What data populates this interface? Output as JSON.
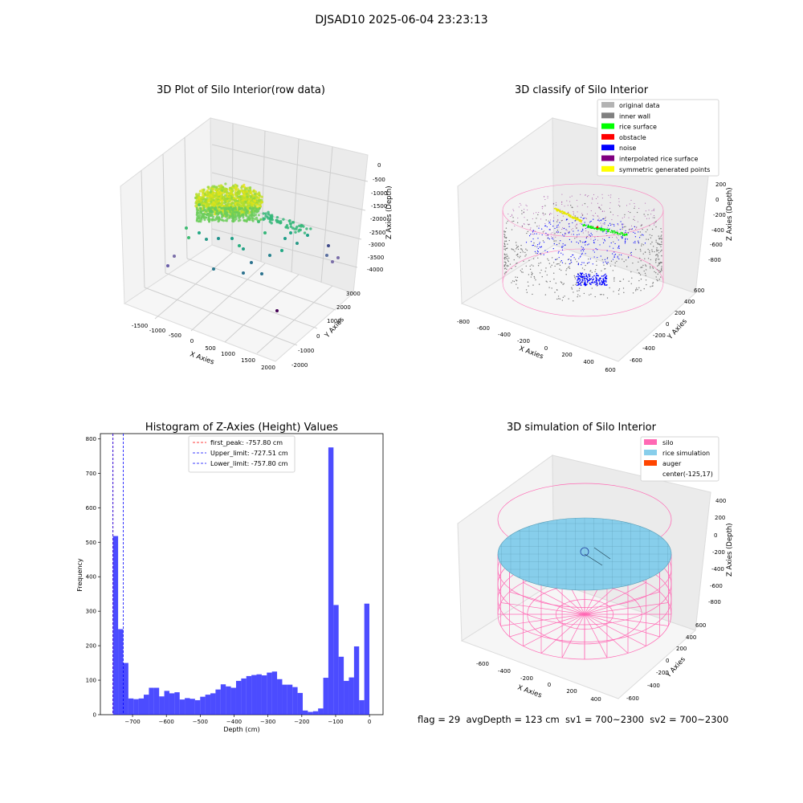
{
  "suptitle": "DJSAD10 2025-06-04 23:23:13",
  "status_text": "flag = 29  avgDepth = 123 cm  sv1 = 700~2300  sv2 = 700~2300",
  "panels": {
    "raw": {
      "title": "3D Plot of Silo Interior(row data)",
      "xlabel": "X Axies",
      "ylabel": "Y Axies",
      "zlabel": "Z Axies (Depth)",
      "xticks": [
        "-1500",
        "-1000",
        "-500",
        "0",
        "500",
        "1000",
        "1500",
        "2000"
      ],
      "yticks": [
        "-2000",
        "-1000",
        "0",
        "1000",
        "2000",
        "3000"
      ],
      "zticks": [
        "0",
        "-500",
        "-1000",
        "-1500",
        "-2000",
        "-2500",
        "-3000",
        "-3500",
        "-4000"
      ]
    },
    "classify": {
      "title": "3D classify of Silo Interior",
      "xlabel": "X Axies",
      "ylabel": "Y Axies",
      "zlabel": "Z Axies (Depth)",
      "xticks": [
        "-800",
        "-600",
        "-400",
        "-200",
        "0",
        "200",
        "400",
        "600"
      ],
      "yticks": [
        "-600",
        "-400",
        "-200",
        "0",
        "200",
        "400",
        "600"
      ],
      "zticks": [
        "200",
        "0",
        "-200",
        "-400",
        "-600",
        "-800"
      ],
      "legend": [
        {
          "label": "original data",
          "color": "#b3b3b3"
        },
        {
          "label": "inner wall",
          "color": "#808080"
        },
        {
          "label": "rice surface",
          "color": "#00ff00"
        },
        {
          "label": "obstacle",
          "color": "#ff0000"
        },
        {
          "label": "noise",
          "color": "#0000ff"
        },
        {
          "label": "interpolated rice surface",
          "color": "#800080"
        },
        {
          "label": "symmetric generated points",
          "color": "#ffff00"
        }
      ]
    },
    "hist": {
      "title": "Histogram of Z-Axies (Height) Values",
      "xlabel": "Depth (cm)",
      "ylabel": "Frequency",
      "legend": [
        {
          "label": "first_peak: -757.80 cm",
          "color": "#ff0000"
        },
        {
          "label": "Upper_limit: -727.51 cm",
          "color": "#0000ff"
        },
        {
          "label": "Lower_limit: -757.80 cm",
          "color": "#0000ff"
        }
      ]
    },
    "sim": {
      "title": "3D simulation of Silo Interior",
      "xlabel": "X Axies",
      "ylabel": "Y Axies",
      "zlabel": "Z Axies (Depth)",
      "xticks": [
        "-600",
        "-400",
        "-200",
        "0",
        "200",
        "400"
      ],
      "yticks": [
        "-600",
        "-400",
        "-200",
        "0",
        "200",
        "400",
        "600"
      ],
      "zticks": [
        "400",
        "200",
        "0",
        "-200",
        "-400",
        "-600",
        "-800"
      ],
      "legend": [
        {
          "label": "silo",
          "color": "#ff69b4"
        },
        {
          "label": "rice simulation",
          "color": "#87ceeb"
        },
        {
          "label": "auger",
          "color": "#ff4500"
        },
        {
          "label": "center(-125,17)",
          "color": ""
        }
      ]
    }
  },
  "chart_data": [
    {
      "type": "histogram",
      "title": "Histogram of Z-Axies (Height) Values",
      "xlabel": "Depth (cm)",
      "ylabel": "Frequency",
      "xlim": [
        -795,
        40
      ],
      "ylim": [
        0,
        815
      ],
      "xticks": [
        -700,
        -600,
        -500,
        -400,
        -300,
        -200,
        -100,
        0
      ],
      "yticks": [
        0,
        100,
        200,
        300,
        400,
        500,
        600,
        700,
        800
      ],
      "bar_color": "#0000ff",
      "bins": [
        {
          "x0": -757.8,
          "x1": -742.6,
          "count": 518
        },
        {
          "x0": -742.6,
          "x1": -727.5,
          "count": 248
        },
        {
          "x0": -727.5,
          "x1": -712.3,
          "count": 150
        },
        {
          "x0": -712.3,
          "x1": -697.2,
          "count": 47
        },
        {
          "x0": -697.2,
          "x1": -682.0,
          "count": 45
        },
        {
          "x0": -682.0,
          "x1": -666.9,
          "count": 47
        },
        {
          "x0": -666.9,
          "x1": -651.7,
          "count": 58
        },
        {
          "x0": -651.7,
          "x1": -636.6,
          "count": 78
        },
        {
          "x0": -636.6,
          "x1": -621.4,
          "count": 78
        },
        {
          "x0": -621.4,
          "x1": -606.3,
          "count": 53
        },
        {
          "x0": -606.3,
          "x1": -591.1,
          "count": 69
        },
        {
          "x0": -591.1,
          "x1": -576.0,
          "count": 62
        },
        {
          "x0": -576.0,
          "x1": -560.8,
          "count": 65
        },
        {
          "x0": -560.8,
          "x1": -545.7,
          "count": 44
        },
        {
          "x0": -545.7,
          "x1": -530.5,
          "count": 48
        },
        {
          "x0": -530.5,
          "x1": -515.4,
          "count": 46
        },
        {
          "x0": -515.4,
          "x1": -500.2,
          "count": 42
        },
        {
          "x0": -500.2,
          "x1": -485.1,
          "count": 52
        },
        {
          "x0": -485.1,
          "x1": -469.9,
          "count": 58
        },
        {
          "x0": -469.9,
          "x1": -454.8,
          "count": 62
        },
        {
          "x0": -454.8,
          "x1": -439.6,
          "count": 73
        },
        {
          "x0": -439.6,
          "x1": -424.5,
          "count": 88
        },
        {
          "x0": -424.5,
          "x1": -409.3,
          "count": 82
        },
        {
          "x0": -409.3,
          "x1": -394.2,
          "count": 78
        },
        {
          "x0": -394.2,
          "x1": -379.0,
          "count": 98
        },
        {
          "x0": -379.0,
          "x1": -363.9,
          "count": 105
        },
        {
          "x0": -363.9,
          "x1": -348.7,
          "count": 112
        },
        {
          "x0": -348.7,
          "x1": -333.6,
          "count": 115
        },
        {
          "x0": -333.6,
          "x1": -318.4,
          "count": 117
        },
        {
          "x0": -318.4,
          "x1": -303.3,
          "count": 114
        },
        {
          "x0": -303.3,
          "x1": -288.1,
          "count": 122
        },
        {
          "x0": -288.1,
          "x1": -273.0,
          "count": 125
        },
        {
          "x0": -273.0,
          "x1": -257.8,
          "count": 103
        },
        {
          "x0": -257.8,
          "x1": -242.7,
          "count": 87
        },
        {
          "x0": -242.7,
          "x1": -227.5,
          "count": 87
        },
        {
          "x0": -227.5,
          "x1": -212.4,
          "count": 80
        },
        {
          "x0": -212.4,
          "x1": -197.2,
          "count": 63
        },
        {
          "x0": -197.2,
          "x1": -182.1,
          "count": 12
        },
        {
          "x0": -182.1,
          "x1": -166.9,
          "count": 8
        },
        {
          "x0": -166.9,
          "x1": -151.8,
          "count": 10
        },
        {
          "x0": -151.8,
          "x1": -136.6,
          "count": 18
        },
        {
          "x0": -136.6,
          "x1": -121.5,
          "count": 107
        },
        {
          "x0": -121.5,
          "x1": -106.3,
          "count": 775
        },
        {
          "x0": -106.3,
          "x1": -91.2,
          "count": 318
        },
        {
          "x0": -91.2,
          "x1": -76.0,
          "count": 168
        },
        {
          "x0": -76.0,
          "x1": -60.9,
          "count": 98
        },
        {
          "x0": -60.9,
          "x1": -45.7,
          "count": 108
        },
        {
          "x0": -45.7,
          "x1": -30.6,
          "count": 198
        },
        {
          "x0": -30.6,
          "x1": -15.4,
          "count": 42
        },
        {
          "x0": -15.4,
          "x1": -0.3,
          "count": 322
        }
      ],
      "vlines": [
        {
          "name": "first_peak",
          "x": -757.8,
          "color": "#ff0000",
          "style": "dashed"
        },
        {
          "name": "Upper_limit",
          "x": -727.51,
          "color": "#0000ff",
          "style": "dashed"
        },
        {
          "name": "Lower_limit",
          "x": -757.8,
          "color": "#0000ff",
          "style": "dashed"
        }
      ],
      "legend_position": "upper-center"
    },
    {
      "type": "scatter3d",
      "title": "3D Plot of Silo Interior(row data)",
      "colormap": "viridis-like (depth)",
      "xlim": [
        -1800,
        2100
      ],
      "ylim": [
        -2100,
        3200
      ],
      "zlim": [
        -4300,
        200
      ]
    },
    {
      "type": "scatter3d",
      "title": "3D classify of Silo Interior",
      "xlim": [
        -850,
        650
      ],
      "ylim": [
        -650,
        650
      ],
      "zlim": [
        -900,
        250
      ],
      "legend_position": "upper-right"
    },
    {
      "type": "surface3d",
      "title": "3D simulation of Silo Interior",
      "xlim": [
        -700,
        500
      ],
      "ylim": [
        -650,
        650
      ],
      "zlim": [
        -900,
        450
      ],
      "legend_position": "upper-right"
    }
  ]
}
